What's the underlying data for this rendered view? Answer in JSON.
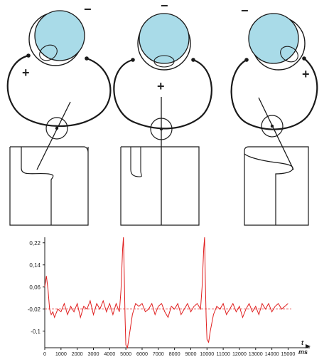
{
  "diagram": {
    "panels": [
      {
        "pole_top": "−",
        "pole_side": "+",
        "gaze": "left"
      },
      {
        "pole_top": "−",
        "pole_side": "+",
        "gaze": "center"
      },
      {
        "pole_top": "−",
        "pole_side": "+",
        "gaze": "right"
      }
    ]
  },
  "colors": {
    "eye_fill": "#a9dbe8",
    "trace": "#e01e1e",
    "baseline": "#e01e1e",
    "ink": "#1a1a1a"
  },
  "chart_data": {
    "type": "line",
    "title": "",
    "xlabel": "ms",
    "ylabel": "",
    "axis_symbol": "t",
    "xlim": [
      0,
      15200
    ],
    "ylim": [
      -0.16,
      0.24
    ],
    "x_ticks": [
      "0",
      "1000",
      "2000",
      "3000",
      "4000",
      "5000",
      "6000",
      "7000",
      "8000",
      "9000",
      "10000",
      "11000",
      "12000",
      "13000",
      "14000",
      "15000"
    ],
    "y_ticks": [
      "0,22",
      "0,14",
      "0,06",
      "-0,02",
      "-0,1"
    ],
    "y_tick_values": [
      0.22,
      0.14,
      0.06,
      -0.02,
      -0.1
    ],
    "baseline": -0.02,
    "series": [
      {
        "x": [
          0,
          100,
          200,
          300,
          400,
          500,
          600,
          800,
          1000,
          1200,
          1400,
          1600,
          1800,
          2000,
          2200,
          2400,
          2600,
          2800,
          3000,
          3200,
          3400,
          3600,
          3800,
          4000,
          4200,
          4400,
          4600,
          4700,
          4800,
          4850,
          4900,
          4950,
          5000,
          5100,
          5200,
          5400,
          5600,
          5800,
          6000,
          6200,
          6400,
          6600,
          6800,
          7000,
          7200,
          7400,
          7600,
          7800,
          8000,
          8200,
          8400,
          8600,
          8800,
          9000,
          9200,
          9400,
          9600,
          9700,
          9800,
          9850,
          9900,
          9950,
          10000,
          10100,
          10200,
          10400,
          10600,
          10800,
          11000,
          11200,
          11400,
          11600,
          11800,
          12000,
          12200,
          12400,
          12600,
          12800,
          13000,
          13200,
          13400,
          13600,
          13800,
          14000,
          14200,
          14400,
          14600,
          14800,
          15000
        ],
        "y": [
          0.06,
          0.1,
          0.05,
          -0.02,
          -0.04,
          -0.03,
          -0.05,
          -0.02,
          -0.03,
          0.0,
          -0.04,
          -0.01,
          -0.03,
          0.0,
          -0.05,
          -0.01,
          -0.02,
          0.01,
          -0.04,
          0.0,
          -0.02,
          0.01,
          -0.03,
          0.0,
          -0.04,
          0.0,
          -0.03,
          0.05,
          0.2,
          0.24,
          0.1,
          -0.05,
          -0.15,
          -0.16,
          -0.12,
          -0.04,
          0.0,
          -0.01,
          0.0,
          -0.03,
          -0.02,
          0.0,
          -0.04,
          -0.01,
          0.0,
          -0.03,
          -0.05,
          -0.01,
          -0.02,
          0.0,
          -0.04,
          -0.02,
          0.0,
          -0.03,
          -0.01,
          0.0,
          -0.02,
          0.06,
          0.2,
          0.24,
          0.08,
          -0.05,
          -0.13,
          -0.14,
          -0.1,
          -0.04,
          -0.01,
          -0.02,
          0.0,
          -0.04,
          -0.02,
          0.0,
          -0.03,
          -0.01,
          -0.05,
          -0.02,
          0.0,
          -0.03,
          -0.01,
          -0.04,
          0.0,
          -0.02,
          0.0,
          -0.03,
          -0.01,
          0.0,
          -0.02,
          -0.01,
          0.0
        ]
      }
    ]
  }
}
